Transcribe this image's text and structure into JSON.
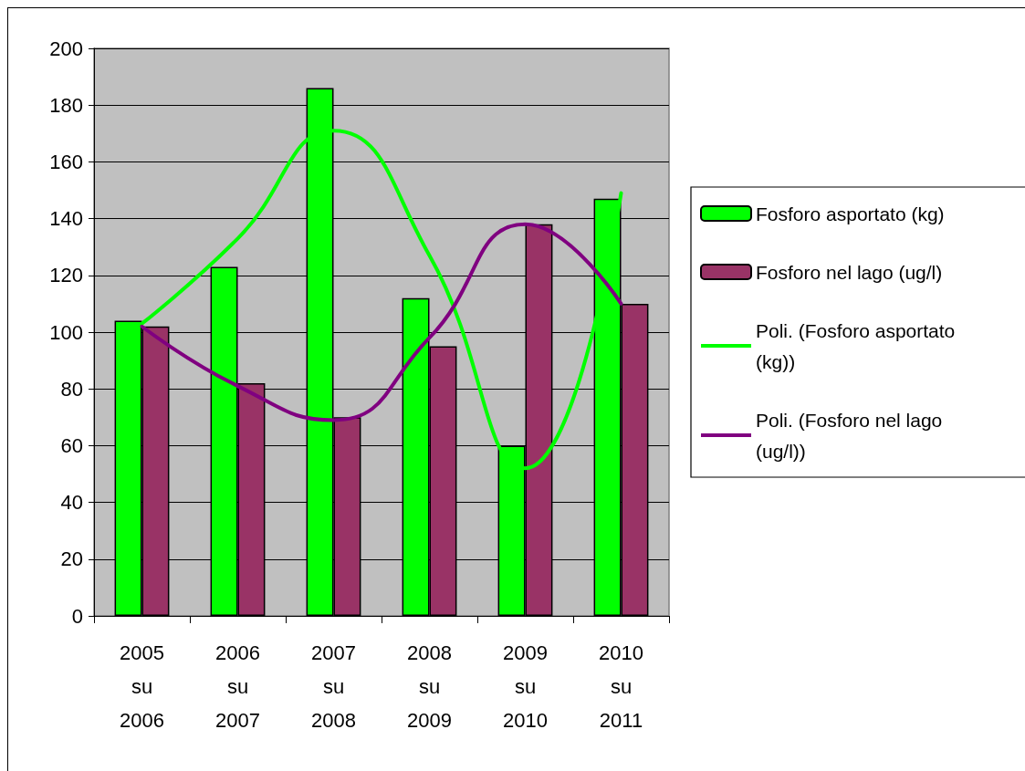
{
  "chart_data": {
    "type": "bar",
    "categories": [
      "2005 su 2006",
      "2006 su 2007",
      "2007 su 2008",
      "2008 su 2009",
      "2009 su 2010",
      "2010 su 2011"
    ],
    "series": [
      {
        "name": "Fosforo asportato (kg)",
        "color": "#00ff00",
        "values": [
          104,
          123,
          186,
          112,
          60,
          147
        ]
      },
      {
        "name": "Fosforo nel lago (ug/l)",
        "color": "#993366",
        "values": [
          102,
          82,
          70,
          95,
          138,
          110
        ]
      },
      {
        "name": "Poli. (Fosforo asportato (kg))",
        "type": "line",
        "color": "#00ff00",
        "values": [
          103,
          133,
          171,
          127,
          52,
          149
        ]
      },
      {
        "name": "Poli. (Fosforo nel lago (ug/l))",
        "type": "line",
        "color": "#800080",
        "values": [
          102,
          81,
          69,
          98,
          138,
          110
        ]
      }
    ],
    "ylim": [
      0,
      200
    ],
    "yticks": [
      0,
      20,
      40,
      60,
      80,
      100,
      120,
      140,
      160,
      180,
      200
    ],
    "grid": "y",
    "legend": "right",
    "marker": "none",
    "line_style": "solid"
  }
}
